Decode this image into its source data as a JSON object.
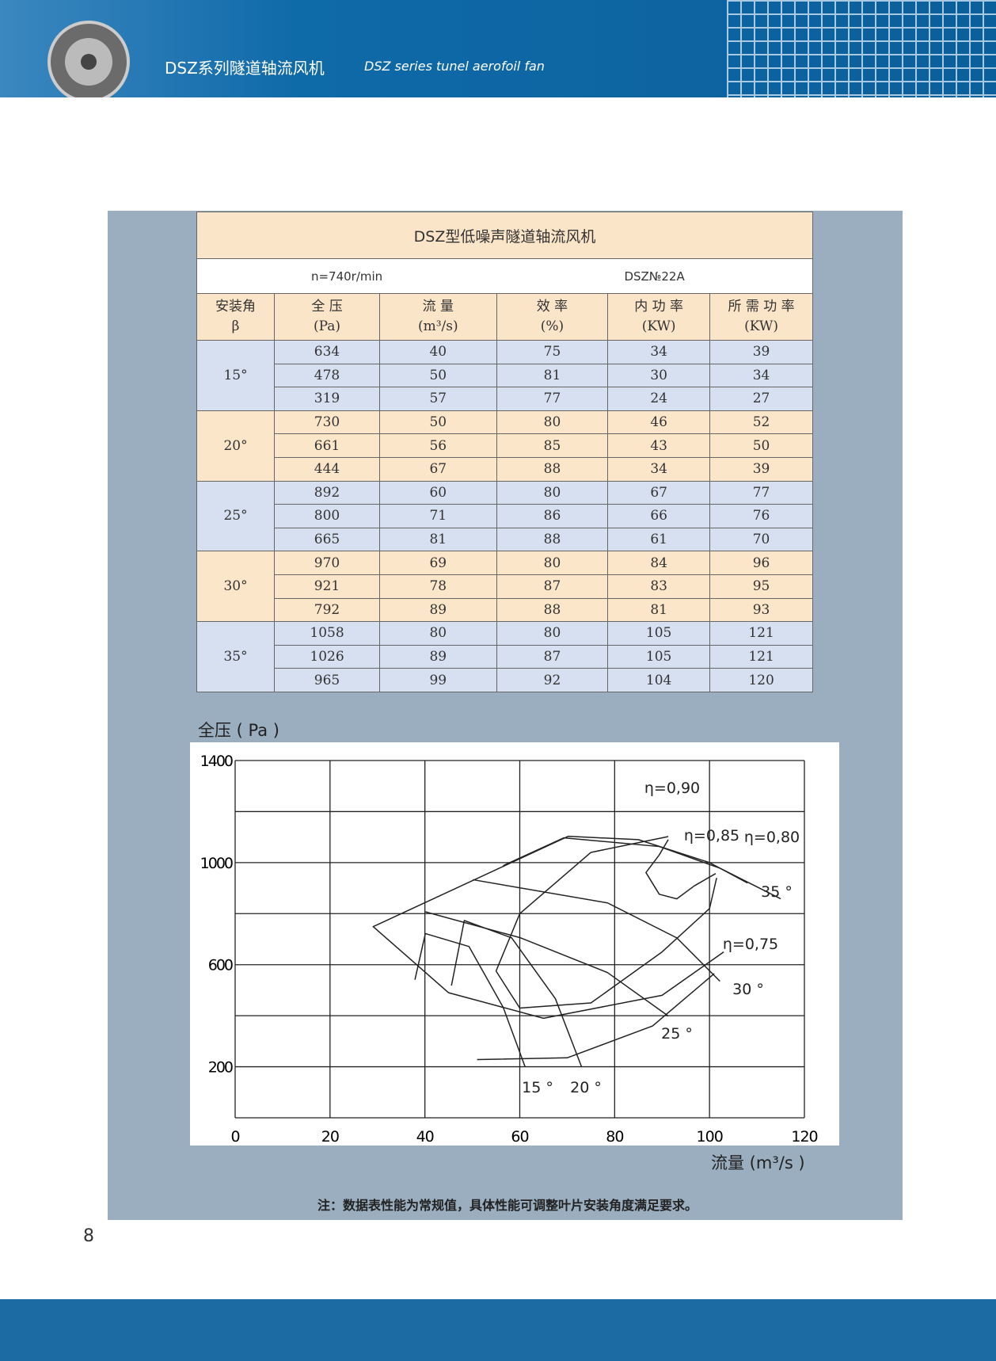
{
  "header": {
    "title_cn": "DSZ系列隧道轴流风机",
    "title_en": "DSZ series tunel aerofoil fan"
  },
  "table": {
    "title": "DSZ型低噪声隧道轴流风机",
    "speed": "n=740r/min",
    "model": "DSZ№22A",
    "headers": [
      [
        "安装角",
        "β"
      ],
      [
        "全 压",
        "(Pa)"
      ],
      [
        "流 量",
        "(m³/s)"
      ],
      [
        "效 率",
        "(%)"
      ],
      [
        "内 功 率",
        "(KW)"
      ],
      [
        "所 需 功 率",
        "(KW)"
      ]
    ],
    "groups": [
      {
        "angle": "15°",
        "rows": [
          [
            634,
            40,
            75,
            34,
            39
          ],
          [
            478,
            50,
            81,
            30,
            34
          ],
          [
            319,
            57,
            77,
            24,
            27
          ]
        ]
      },
      {
        "angle": "20°",
        "rows": [
          [
            730,
            50,
            80,
            46,
            52
          ],
          [
            661,
            56,
            85,
            43,
            50
          ],
          [
            444,
            67,
            88,
            34,
            39
          ]
        ]
      },
      {
        "angle": "25°",
        "rows": [
          [
            892,
            60,
            80,
            67,
            77
          ],
          [
            800,
            71,
            86,
            66,
            76
          ],
          [
            665,
            81,
            88,
            61,
            70
          ]
        ]
      },
      {
        "angle": "30°",
        "rows": [
          [
            970,
            69,
            80,
            84,
            96
          ],
          [
            921,
            78,
            87,
            83,
            95
          ],
          [
            792,
            89,
            88,
            81,
            93
          ]
        ]
      },
      {
        "angle": "35°",
        "rows": [
          [
            1058,
            80,
            80,
            105,
            121
          ],
          [
            1026,
            89,
            87,
            105,
            121
          ],
          [
            965,
            99,
            92,
            104,
            120
          ]
        ]
      }
    ]
  },
  "chart_data": {
    "type": "line",
    "y_label": "全压 ( Pa )",
    "x_label": "流量 (m³/s )",
    "xlim": [
      0,
      120
    ],
    "ylim": [
      0,
      1400
    ],
    "xticks": [
      0,
      20,
      40,
      60,
      80,
      100,
      120
    ],
    "yticks": [
      200,
      600,
      1000,
      1400
    ],
    "ygrid": [
      0,
      200,
      400,
      600,
      800,
      1000,
      1200,
      1400
    ],
    "grid": true,
    "series": [
      {
        "name": "15 °",
        "color": "#222222",
        "x": [
          37.9,
          40.1,
          49.3,
          56.5,
          61.1
        ],
        "y": [
          541,
          722,
          671,
          433,
          201
        ]
      },
      {
        "name": "20 °",
        "color": "#222222",
        "x": [
          45.6,
          48.3,
          58.3,
          67.5,
          73.0
        ],
        "y": [
          518,
          773,
          705,
          467,
          201
        ]
      },
      {
        "name": "25 °",
        "color": "#222222",
        "x": [
          40.1,
          60.2,
          78.5,
          91.3
        ],
        "y": [
          807,
          705,
          569,
          399
        ]
      },
      {
        "name": "30 °",
        "color": "#222222",
        "x": [
          50.1,
          78.5,
          93.1,
          102.2
        ],
        "y": [
          933,
          842,
          705,
          535
        ]
      },
      {
        "name": "35 °",
        "color": "#222222",
        "x": [
          56.5,
          69.3,
          89.4,
          102.2,
          115
        ],
        "y": [
          988,
          1097,
          1063,
          978,
          858
        ]
      },
      {
        "name": "η=0,90",
        "color": "#222222",
        "x": [
          101.3,
          96.8,
          93.1,
          89.4,
          86.6,
          89.4,
          91.3
        ],
        "y": [
          957,
          909,
          858,
          876,
          961,
          1030,
          1090
        ]
      },
      {
        "name": "η=0,85",
        "color": "#222222",
        "x": [
          101.5,
          100,
          90,
          75,
          60,
          55,
          60,
          75,
          91.3
        ],
        "y": [
          940,
          820,
          650,
          450,
          430,
          575,
          800,
          1040,
          1102
        ]
      },
      {
        "name": "η=0,80",
        "color": "#222222",
        "x": [
          108,
          100,
          85,
          70.2,
          29.1,
          45,
          65,
          90,
          103
        ],
        "y": [
          920,
          1000,
          1090,
          1103,
          749,
          490,
          390,
          480,
          650
        ]
      },
      {
        "name": "η=0,75",
        "color": "#222222",
        "x": [
          51,
          70,
          88,
          101
        ],
        "y": [
          228,
          235,
          360,
          565
        ]
      }
    ]
  },
  "note": "注：数据表性能为常规值，具体性能可调整叶片安装角度满足要求。",
  "page_number": "8"
}
